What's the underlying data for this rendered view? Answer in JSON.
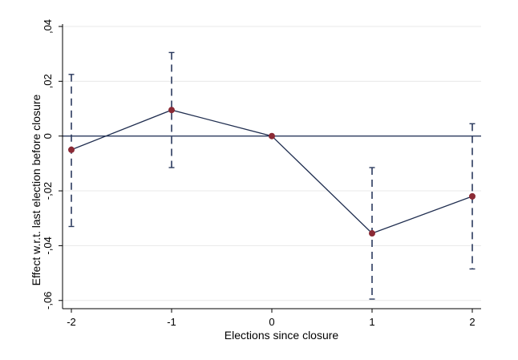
{
  "chart_data": {
    "type": "line",
    "xlabel": "Elections since closure",
    "ylabel": "Effect w.r.t. last election before closure",
    "x": [
      -2,
      -1,
      0,
      1,
      2
    ],
    "xticks": [
      "-2",
      "-1",
      "0",
      "1",
      "2"
    ],
    "yticks": [
      {
        "value": 0.04,
        "label": ",04"
      },
      {
        "value": 0.02,
        "label": ",02"
      },
      {
        "value": 0,
        "label": "0"
      },
      {
        "value": -0.02,
        "label": "-,02"
      },
      {
        "value": -0.04,
        "label": "-,04"
      },
      {
        "value": -0.06,
        "label": "-,06"
      }
    ],
    "ylim": [
      -0.063,
      0.04
    ],
    "xlim": [
      -2,
      2
    ],
    "series": [
      {
        "values": [
          -0.005,
          0.0095,
          0.0,
          -0.0355,
          -0.022
        ],
        "ci_low": [
          -0.033,
          -0.0115,
          0.0,
          -0.0595,
          -0.0485
        ],
        "ci_high": [
          0.0225,
          0.0305,
          0.0,
          -0.0115,
          0.0045
        ]
      }
    ],
    "reference_line": 0,
    "grid": "horizontal",
    "colors": {
      "line": "#1f2d4f",
      "marker": "#8b2a35",
      "ci": "#2b3a5e",
      "grid": "#e8e8e8",
      "zero_line": "#2b3a5e",
      "axis": "#000000"
    }
  }
}
